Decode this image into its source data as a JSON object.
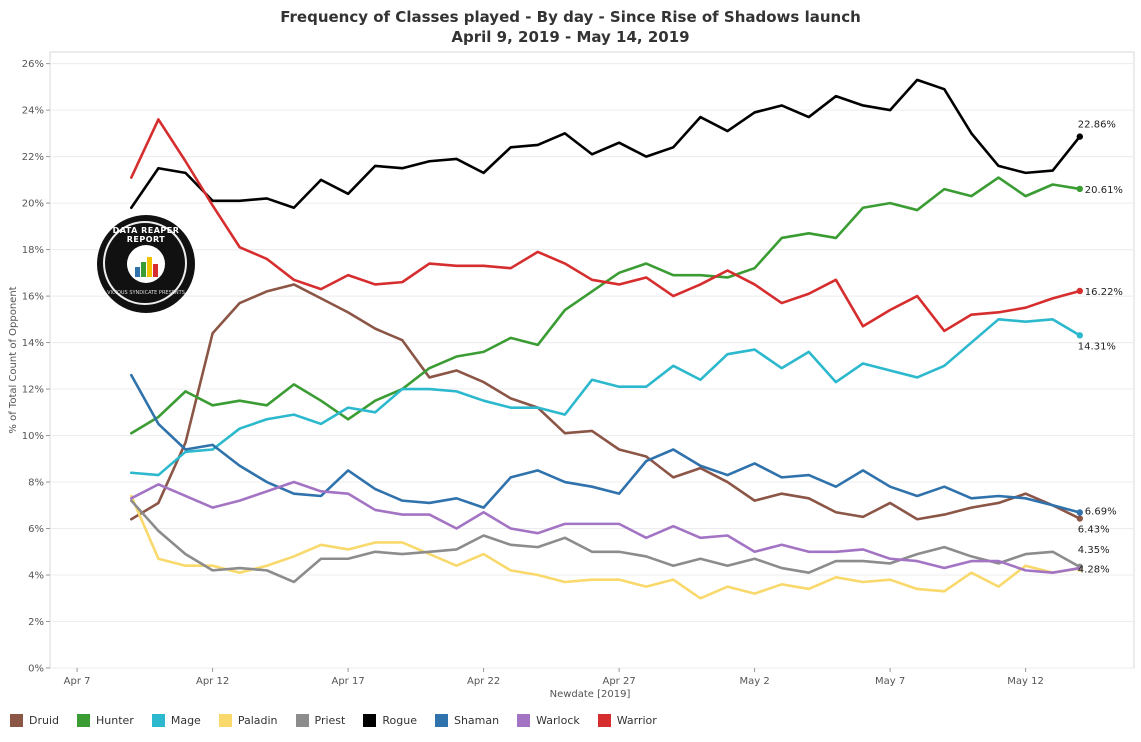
{
  "title": {
    "line1": "Frequency of Classes played - By day - Since Rise of Shadows launch",
    "line2": "April 9, 2019 - May 14, 2019"
  },
  "logo": {
    "name": "data-reaper-report-logo",
    "text": "DATA REAPER REPORT",
    "subtext": "VICIOUS SYNDICATE PRESENTS"
  },
  "chart_data": {
    "type": "line",
    "title": "Frequency of Classes played - By day - Since Rise of Shadows launch",
    "subtitle": "April 9, 2019 - May 14, 2019",
    "xlabel": "Newdate [2019]",
    "ylabel": "% of Total Count of Opponent",
    "x_start_day": 9,
    "x_range": [
      6,
      46
    ],
    "x_ticks": [
      {
        "day": 7,
        "label": "Apr 7"
      },
      {
        "day": 12,
        "label": "Apr 12"
      },
      {
        "day": 17,
        "label": "Apr 17"
      },
      {
        "day": 22,
        "label": "Apr 22"
      },
      {
        "day": 27,
        "label": "Apr 27"
      },
      {
        "day": 32,
        "label": "May 2"
      },
      {
        "day": 37,
        "label": "May 7"
      },
      {
        "day": 42,
        "label": "May 12"
      }
    ],
    "ylim": [
      0,
      26.5
    ],
    "y_ticks": [
      0,
      2,
      4,
      6,
      8,
      10,
      12,
      14,
      16,
      18,
      20,
      22,
      24,
      26
    ],
    "y_tick_suffix": "%",
    "gridlines": "horizontal",
    "legend_position": "bottom",
    "series": [
      {
        "name": "Druid",
        "color": "#8c5647",
        "end_label": "6.43%",
        "values": [
          6.4,
          7.1,
          9.7,
          14.4,
          15.7,
          16.2,
          16.5,
          15.9,
          15.3,
          14.6,
          14.1,
          12.5,
          12.8,
          12.3,
          11.6,
          11.2,
          10.1,
          10.2,
          9.4,
          9.1,
          8.2,
          8.6,
          8.0,
          7.2,
          7.5,
          7.3,
          6.7,
          6.5,
          7.1,
          6.4,
          6.6,
          6.9,
          7.1,
          7.5,
          7.0,
          6.43
        ]
      },
      {
        "name": "Hunter",
        "color": "#3a9c33",
        "end_label": "20.61%",
        "values": [
          10.1,
          10.8,
          11.9,
          11.3,
          11.5,
          11.3,
          12.2,
          11.5,
          10.7,
          11.5,
          12.0,
          12.9,
          13.4,
          13.6,
          14.2,
          13.9,
          15.4,
          16.2,
          17.0,
          17.4,
          16.9,
          16.9,
          16.8,
          17.2,
          18.5,
          18.7,
          18.5,
          19.8,
          20.0,
          19.7,
          20.6,
          20.3,
          21.1,
          20.3,
          20.8,
          20.61
        ]
      },
      {
        "name": "Mage",
        "color": "#2cb8cd",
        "end_label": "14.31%",
        "values": [
          8.4,
          8.3,
          9.3,
          9.4,
          10.3,
          10.7,
          10.9,
          10.5,
          11.2,
          11.0,
          12.0,
          12.0,
          11.9,
          11.5,
          11.2,
          11.2,
          10.9,
          12.4,
          12.1,
          12.1,
          13.0,
          12.4,
          13.5,
          13.7,
          12.9,
          13.6,
          12.3,
          13.1,
          12.8,
          12.5,
          13.0,
          14.0,
          15.0,
          14.9,
          15.0,
          14.31
        ]
      },
      {
        "name": "Paladin",
        "color": "#f9d96b",
        "end_label": "4.28%",
        "values": [
          7.4,
          4.7,
          4.4,
          4.4,
          4.1,
          4.4,
          4.8,
          5.3,
          5.1,
          5.4,
          5.4,
          4.9,
          4.4,
          4.9,
          4.2,
          4.0,
          3.7,
          3.8,
          3.8,
          3.5,
          3.8,
          3.0,
          3.5,
          3.2,
          3.6,
          3.4,
          3.9,
          3.7,
          3.8,
          3.4,
          3.3,
          4.1,
          3.5,
          4.4,
          4.1,
          4.28
        ]
      },
      {
        "name": "Priest",
        "color": "#8c8c8c",
        "end_label": "4.35%",
        "values": [
          7.2,
          5.9,
          4.9,
          4.2,
          4.3,
          4.2,
          3.7,
          4.7,
          4.7,
          5.0,
          4.9,
          5.0,
          5.1,
          5.7,
          5.3,
          5.2,
          5.6,
          5.0,
          5.0,
          4.8,
          4.4,
          4.7,
          4.4,
          4.7,
          4.3,
          4.1,
          4.6,
          4.6,
          4.5,
          4.9,
          5.2,
          4.8,
          4.5,
          4.9,
          5.0,
          4.35
        ]
      },
      {
        "name": "Rogue",
        "color": "#000000",
        "end_label": "22.86%",
        "values": [
          19.8,
          21.5,
          21.3,
          20.1,
          20.1,
          20.2,
          19.8,
          21.0,
          20.4,
          21.6,
          21.5,
          21.8,
          21.9,
          21.3,
          22.4,
          22.5,
          23.0,
          22.1,
          22.6,
          22.0,
          22.4,
          23.7,
          23.1,
          23.9,
          24.2,
          23.7,
          24.6,
          24.2,
          24.0,
          25.3,
          24.9,
          23.0,
          21.6,
          21.3,
          21.4,
          22.86
        ]
      },
      {
        "name": "Shaman",
        "color": "#2f72ac",
        "end_label": "6.69%",
        "values": [
          12.6,
          10.5,
          9.4,
          9.6,
          8.7,
          8.0,
          7.5,
          7.4,
          8.5,
          7.7,
          7.2,
          7.1,
          7.3,
          6.9,
          8.2,
          8.5,
          8.0,
          7.8,
          7.5,
          8.9,
          9.4,
          8.7,
          8.3,
          8.8,
          8.2,
          8.3,
          7.8,
          8.5,
          7.8,
          7.4,
          7.8,
          7.3,
          7.4,
          7.3,
          7.0,
          6.69
        ]
      },
      {
        "name": "Warlock",
        "color": "#a374c4",
        "end_label": "",
        "values": [
          7.3,
          7.9,
          7.4,
          6.9,
          7.2,
          7.6,
          8.0,
          7.6,
          7.5,
          6.8,
          6.6,
          6.6,
          6.0,
          6.7,
          6.0,
          5.8,
          6.2,
          6.2,
          6.2,
          5.6,
          6.1,
          5.6,
          5.7,
          5.0,
          5.3,
          5.0,
          5.0,
          5.1,
          4.7,
          4.6,
          4.3,
          4.6,
          4.6,
          4.2,
          4.1,
          4.3
        ]
      },
      {
        "name": "Warrior",
        "color": "#d62e2e",
        "end_label": "16.22%",
        "values": [
          21.1,
          23.6,
          21.8,
          19.9,
          18.1,
          17.6,
          16.7,
          16.3,
          16.9,
          16.5,
          16.6,
          17.4,
          17.3,
          17.3,
          17.2,
          17.9,
          17.4,
          16.7,
          16.5,
          16.8,
          16.0,
          16.5,
          17.1,
          16.5,
          15.7,
          16.1,
          16.7,
          14.7,
          15.4,
          16.0,
          14.5,
          15.2,
          15.3,
          15.5,
          15.9,
          16.22
        ]
      }
    ]
  }
}
